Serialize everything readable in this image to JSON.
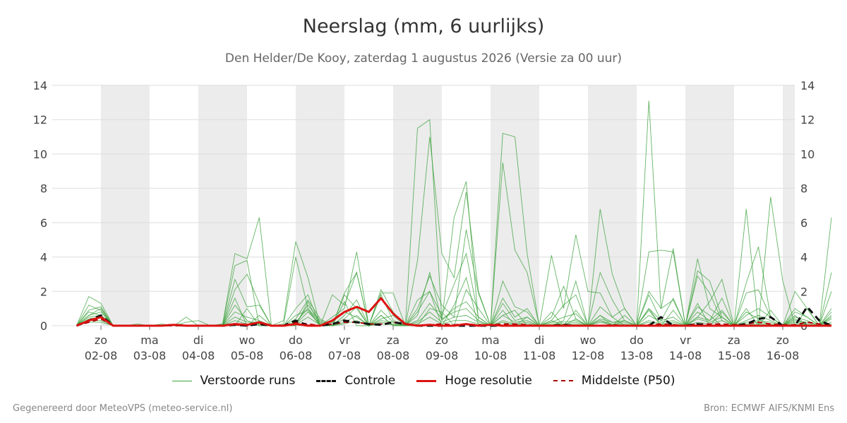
{
  "page": {
    "title": "Neerslag (mm, 6 uurlijks)",
    "subtitle": "Den Helder/De Kooy, zaterdag  1 augustus 2026 (Versie za 00 uur)",
    "credit_left": "Gegenereerd door MeteoVPS (meteo-service.nl)",
    "credit_right": "Bron: ECMWF AIFS/KNMI Ens"
  },
  "colors": {
    "members": "#3da23d",
    "control": "#111111",
    "high_res": "#dd1111",
    "median": "#aa0000",
    "night_band": "#ececec",
    "grid": "#dddddd"
  },
  "chart_data": {
    "type": "line",
    "ylim": [
      0,
      14
    ],
    "yticks": [
      0,
      2,
      4,
      6,
      8,
      10,
      12,
      14
    ],
    "x_unit": "6-hour steps from 01-08 12:00",
    "xlim": [
      0,
      62
    ],
    "day_labels": [
      {
        "day": "zo",
        "date": "02-08"
      },
      {
        "day": "ma",
        "date": "03-08"
      },
      {
        "day": "di",
        "date": "04-08"
      },
      {
        "day": "wo",
        "date": "05-08"
      },
      {
        "day": "do",
        "date": "06-08"
      },
      {
        "day": "vr",
        "date": "07-08"
      },
      {
        "day": "za",
        "date": "08-08"
      },
      {
        "day": "zo",
        "date": "09-08"
      },
      {
        "day": "ma",
        "date": "10-08"
      },
      {
        "day": "di",
        "date": "11-08"
      },
      {
        "day": "wo",
        "date": "12-08"
      },
      {
        "day": "do",
        "date": "13-08"
      },
      {
        "day": "vr",
        "date": "14-08"
      },
      {
        "day": "za",
        "date": "15-08"
      },
      {
        "day": "zo",
        "date": "16-08"
      }
    ],
    "legend": [
      {
        "key": "members",
        "label": "Verstoorde runs",
        "style": "thin"
      },
      {
        "key": "control",
        "label": "Controle",
        "style": "dashed"
      },
      {
        "key": "high_res",
        "label": "Hoge resolutie",
        "style": "solid"
      },
      {
        "key": "median",
        "label": "Middelste (P50)",
        "style": "dashed-thin"
      }
    ],
    "series": [
      {
        "key": "control",
        "values": [
          0,
          0.3,
          0.6,
          0,
          0,
          0,
          0,
          0,
          0.05,
          0,
          0,
          0,
          0,
          0.05,
          0,
          0.1,
          0,
          0,
          0.3,
          0,
          0,
          0.1,
          0.3,
          0.2,
          0.1,
          0.05,
          0.2,
          0.1,
          0,
          0,
          0,
          0,
          0,
          0,
          0,
          0,
          0,
          0,
          0,
          0,
          0.05,
          0,
          0,
          0,
          0,
          0,
          0,
          0,
          0.5,
          0,
          0,
          0.1,
          0,
          0,
          0,
          0.1,
          0.4,
          0.5,
          0,
          0,
          1.1,
          0.3,
          0
        ]
      },
      {
        "key": "high_res",
        "values": [
          0,
          0.3,
          0.5,
          0,
          0,
          0,
          0,
          0,
          0.05,
          0,
          0,
          0,
          0,
          0.1,
          0.05,
          0.2,
          0,
          0,
          0.1,
          0,
          0,
          0.3,
          0.8,
          1.1,
          0.8,
          1.6,
          0.7,
          0.1,
          0,
          0.05,
          0,
          0,
          0.1,
          0,
          0.05,
          0,
          0,
          0,
          0,
          0,
          0,
          0,
          0,
          0,
          0,
          0,
          0,
          0,
          0,
          0,
          0,
          0,
          0,
          0,
          0,
          0,
          0,
          0,
          0,
          0,
          0,
          0,
          0
        ]
      },
      {
        "key": "median",
        "values": [
          0,
          0.2,
          0.4,
          0,
          0,
          0,
          0,
          0,
          0,
          0,
          0,
          0,
          0,
          0.05,
          0,
          0.1,
          0,
          0,
          0.2,
          0.1,
          0,
          0.1,
          0.2,
          0.2,
          0.1,
          0.1,
          0.2,
          0.1,
          0,
          0.05,
          0.1,
          0.05,
          0.1,
          0.05,
          0.05,
          0.1,
          0.1,
          0.05,
          0,
          0,
          0.05,
          0,
          0,
          0,
          0.05,
          0,
          0,
          0.05,
          0.1,
          0.05,
          0,
          0.1,
          0.1,
          0.1,
          0.05,
          0.1,
          0.2,
          0.1,
          0.05,
          0.05,
          0.2,
          0.1,
          0.05
        ]
      }
    ],
    "members": [
      [
        0,
        1.7,
        1.3,
        0,
        0,
        0,
        0,
        0,
        0,
        0.5,
        0,
        0,
        0.1,
        4.2,
        3.9,
        6.3,
        0,
        0.3,
        4.9,
        2.8,
        0,
        1.8,
        1.2,
        3.1,
        0,
        1.9,
        1.9,
        0,
        11.5,
        12.0,
        0.3,
        6.3,
        8.4,
        0.3,
        0,
        11.2,
        11.0,
        4.2,
        0,
        0,
        0.3,
        2.6,
        0,
        6.8,
        3.0,
        1.0,
        0,
        13.1,
        1.0,
        4.5,
        0,
        3.9,
        1.0,
        0.5,
        0,
        6.8,
        0,
        7.5,
        2.6,
        0,
        1.0,
        0,
        6.3
      ],
      [
        0,
        1.2,
        0.9,
        0,
        0,
        0.1,
        0,
        0.1,
        0,
        0.2,
        0.3,
        0,
        0.1,
        3.5,
        3.8,
        0,
        0,
        0.1,
        4.0,
        1.0,
        0,
        0.5,
        1.0,
        4.3,
        0,
        0.6,
        0,
        0,
        3.8,
        11.0,
        4.2,
        2.8,
        7.8,
        2.0,
        0,
        9.5,
        4.4,
        3.1,
        0,
        4.1,
        1.0,
        5.3,
        2.0,
        1.9,
        0.5,
        0,
        0,
        4.3,
        4.4,
        4.3,
        0,
        3.2,
        2.6,
        0.5,
        0,
        2.5,
        4.6,
        0.5,
        0,
        2.0,
        1.0,
        0,
        3.1
      ],
      [
        0,
        0.9,
        1.1,
        0,
        0,
        0,
        0,
        0,
        0,
        0,
        0,
        0,
        0,
        2.7,
        1.1,
        1.2,
        0,
        0,
        1.0,
        1.8,
        0,
        0,
        1.8,
        1.0,
        0,
        2.1,
        0.8,
        0,
        1.0,
        2.9,
        1.2,
        0.5,
        5.6,
        1.9,
        0,
        1.6,
        0.5,
        1.0,
        0,
        0.5,
        2.3,
        0.4,
        0,
        3.1,
        1.5,
        0.3,
        0,
        2.0,
        1.0,
        1.5,
        0,
        2.9,
        1.9,
        0.3,
        0,
        1.9,
        2.1,
        0.5,
        0,
        1.0,
        0.5,
        0,
        2.0
      ],
      [
        0,
        0.6,
        0.8,
        0,
        0,
        0,
        0,
        0,
        0,
        0,
        0,
        0,
        0,
        2.1,
        3.0,
        1.3,
        0,
        0,
        0.4,
        1.5,
        0.4,
        0,
        1.9,
        3.1,
        0,
        1.8,
        0.3,
        0,
        1.5,
        2.0,
        0.6,
        2.4,
        4.2,
        0.5,
        0,
        2.6,
        1.1,
        0.8,
        0,
        0.3,
        1.2,
        1.8,
        0,
        1.1,
        0.5,
        1.0,
        0,
        1.8,
        0.3,
        1.6,
        0,
        0.5,
        1.4,
        2.7,
        0,
        0.6,
        1.0,
        0.5,
        0,
        0.8,
        0.5,
        0,
        1.0
      ],
      [
        0,
        0.5,
        0.6,
        0,
        0,
        0,
        0,
        0,
        0,
        0,
        0,
        0,
        0,
        1.2,
        0.3,
        0,
        0,
        0,
        0.2,
        1.0,
        0.2,
        0,
        0.6,
        1.5,
        0,
        0.9,
        0.2,
        0,
        0.6,
        3.1,
        0.3,
        1.0,
        1.4,
        0.5,
        0,
        1.3,
        0.3,
        0.5,
        0,
        0.2,
        0.5,
        0.7,
        0,
        0.4,
        0.2,
        0.2,
        0,
        1.0,
        0.3,
        0.5,
        0,
        0.5,
        0.3,
        1.6,
        0,
        0.3,
        0.6,
        0.3,
        0,
        0.5,
        0.3,
        0,
        0.6
      ],
      [
        0,
        0.4,
        0.5,
        0,
        0,
        0,
        0,
        0,
        0,
        0,
        0,
        0,
        0,
        0.8,
        0.5,
        0.3,
        0,
        0,
        0.1,
        1.2,
        0.3,
        0,
        0.4,
        1.1,
        0,
        0.3,
        0.2,
        0,
        0.3,
        1.3,
        0.4,
        0.8,
        1.0,
        0.3,
        0,
        0.6,
        0.2,
        0.3,
        0,
        0.2,
        0.2,
        0.3,
        0,
        0.6,
        0.2,
        0.3,
        0,
        0.6,
        0.2,
        0.3,
        0,
        0.8,
        0.3,
        0.9,
        0,
        0.2,
        0.3,
        0.2,
        0,
        0.3,
        0.2,
        0,
        0.4
      ],
      [
        0,
        0.3,
        0.3,
        0,
        0,
        0,
        0,
        0,
        0,
        0,
        0,
        0,
        0,
        0.5,
        0.2,
        0.2,
        0,
        0,
        0.1,
        0.8,
        0.1,
        0,
        0.2,
        0.6,
        0,
        0.2,
        0.1,
        0,
        0.2,
        0.8,
        0.2,
        0.5,
        0.6,
        0.2,
        0,
        0.3,
        0.1,
        0.2,
        0,
        0.1,
        0.1,
        0.2,
        0,
        0.3,
        0.1,
        0.1,
        0,
        0.3,
        0.1,
        0.2,
        0,
        0.4,
        0.2,
        0.5,
        0,
        0.1,
        0.2,
        0.1,
        0,
        0.2,
        0.1,
        0,
        0.2
      ],
      [
        0,
        0.2,
        0.2,
        0,
        0,
        0,
        0,
        0,
        0,
        0,
        0,
        0,
        0,
        0.3,
        0.1,
        0.1,
        0,
        0,
        0.05,
        0.5,
        0.05,
        0,
        0.1,
        0.3,
        0,
        0.1,
        0.05,
        0,
        0.1,
        0.5,
        0.1,
        0.3,
        0.3,
        0.1,
        0,
        0.2,
        0.05,
        0.1,
        0,
        0.05,
        0.05,
        0.1,
        0,
        0.2,
        0.05,
        0.05,
        0,
        0.2,
        0.05,
        0.1,
        0,
        0.2,
        0.1,
        0.3,
        0,
        0.05,
        0.1,
        0.05,
        0,
        0.1,
        0.05,
        0,
        0.1
      ],
      [
        0,
        0.8,
        0.6,
        0,
        0,
        0,
        0,
        0,
        0,
        0,
        0,
        0,
        0,
        0,
        1.0,
        0,
        0,
        0,
        0.6,
        0.9,
        0,
        0.2,
        0.8,
        0.5,
        0,
        0.6,
        0,
        0,
        0.8,
        2.0,
        0,
        1.2,
        2.8,
        0,
        0,
        0.9,
        0,
        0.5,
        0,
        0.8,
        0,
        0.4,
        0,
        0.6,
        0,
        0.6,
        0,
        1.0,
        0,
        0.9,
        0,
        1.3,
        0,
        0.8,
        0,
        1.0,
        0,
        0.9,
        0,
        0.6,
        0,
        0,
        0.5
      ],
      [
        0,
        0.6,
        1.0,
        0,
        0,
        0,
        0,
        0,
        0,
        0,
        0,
        0,
        0,
        1.6,
        0,
        0.6,
        0,
        0,
        0,
        1.4,
        0,
        0,
        1.4,
        0,
        0,
        0.4,
        0.6,
        0,
        0,
        1.0,
        0.8,
        0,
        2.1,
        1.0,
        0,
        0.6,
        0.9,
        0,
        0,
        0.3,
        0,
        0.9,
        0,
        0.3,
        0,
        0.3,
        0,
        0.9,
        0,
        0,
        0,
        1.1,
        0.6,
        0,
        0,
        0.8,
        0.4,
        0,
        0,
        0.4,
        0,
        0,
        0.8
      ]
    ]
  }
}
